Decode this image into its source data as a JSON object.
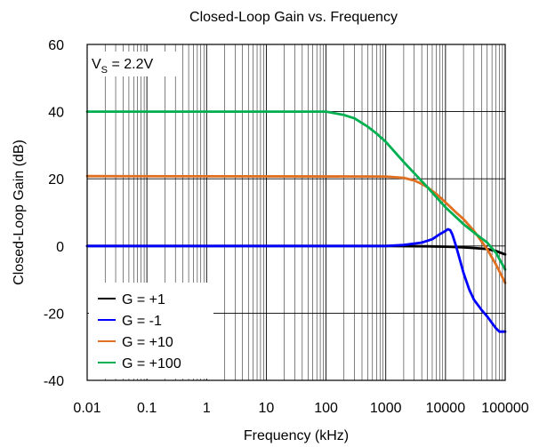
{
  "chart_data": {
    "type": "line",
    "title": "Closed-Loop Gain vs. Frequency",
    "xlabel": "Frequency (kHz)",
    "ylabel": "Closed-Loop Gain (dB)",
    "xscale": "log",
    "xlim": [
      0.01,
      100000
    ],
    "ylim": [
      -40,
      60
    ],
    "xticks": [
      "0.01",
      "0.1",
      "1",
      "10",
      "100",
      "1000",
      "10000",
      "100000"
    ],
    "yticks": [
      "-40",
      "-20",
      "0",
      "20",
      "40",
      "60"
    ],
    "grid": true,
    "annotation": {
      "main": "V",
      "sub": "S",
      "rest": " = 2.2V"
    },
    "legend_position": "bottom-left",
    "series": [
      {
        "name": "G = +1",
        "color": "#000000",
        "x": [
          0.01,
          1000,
          5000,
          10000,
          20000,
          30000,
          50000,
          70000,
          100000
        ],
        "y": [
          0,
          0,
          -0.1,
          -0.2,
          -0.4,
          -0.6,
          -0.9,
          -1.5,
          -2.5
        ]
      },
      {
        "name": "G = -1",
        "color": "#0000ff",
        "x": [
          0.01,
          1000,
          2000,
          4000,
          6000,
          8000,
          10000,
          11000,
          12000,
          13000,
          15000,
          18000,
          20000,
          25000,
          30000,
          40000,
          50000,
          70000,
          80000,
          100000
        ],
        "y": [
          0,
          0,
          0.3,
          1,
          2,
          3.5,
          4.5,
          5,
          4.7,
          3.5,
          0,
          -5,
          -8,
          -13,
          -16,
          -19,
          -21,
          -24.5,
          -25.5,
          -25.5
        ]
      },
      {
        "name": "G = +10",
        "color": "#e07020",
        "x": [
          0.01,
          1000,
          2000,
          3000,
          4000,
          5000,
          7000,
          10000,
          15000,
          20000,
          30000,
          50000,
          70000,
          100000
        ],
        "y": [
          20.8,
          20.7,
          20.3,
          19.5,
          18.5,
          17.5,
          15.5,
          13,
          10,
          8,
          4.5,
          -1,
          -5.5,
          -11
        ]
      },
      {
        "name": "G = +100",
        "color": "#00b050",
        "x": [
          0.01,
          100,
          200,
          300,
          500,
          700,
          1000,
          2000,
          5000,
          10000,
          20000,
          30000,
          50000,
          70000,
          100000
        ],
        "y": [
          40,
          40,
          39,
          38,
          35.5,
          33.5,
          31,
          25,
          17.5,
          11.5,
          6.5,
          4,
          1,
          -2,
          -7
        ]
      }
    ]
  }
}
